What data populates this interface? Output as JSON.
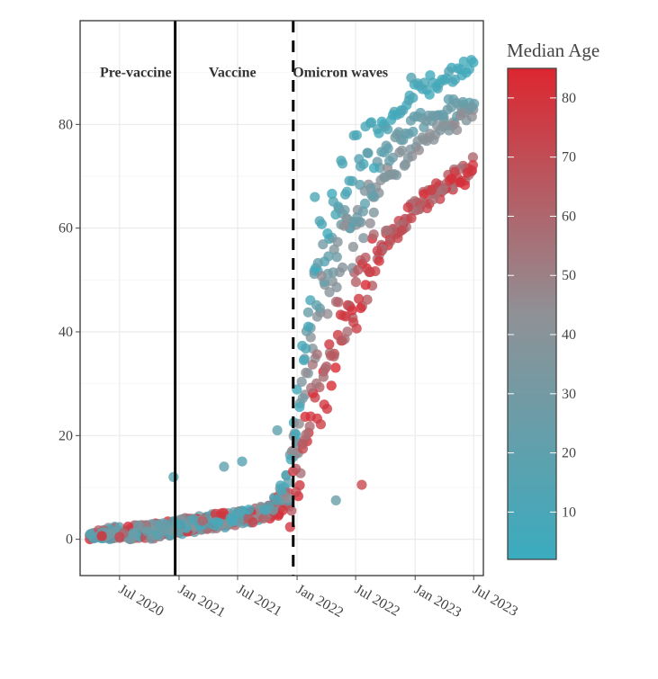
{
  "chart_data": {
    "type": "scatter",
    "title": "",
    "xlabel": "",
    "ylabel": "",
    "x_range": [
      "2020-03-01",
      "2023-07-31"
    ],
    "ylim": [
      -7,
      100
    ],
    "grid": true,
    "x_ticks": [
      {
        "date": "2020-07-01",
        "label": "Jul 2020"
      },
      {
        "date": "2021-01-01",
        "label": "Jan 2021"
      },
      {
        "date": "2021-07-01",
        "label": "Jul 2021"
      },
      {
        "date": "2022-01-01",
        "label": "Jan 2022"
      },
      {
        "date": "2022-07-01",
        "label": "Jul 2022"
      },
      {
        "date": "2023-01-01",
        "label": "Jan 2023"
      },
      {
        "date": "2023-07-01",
        "label": "Jul 2023"
      }
    ],
    "y_ticks": [
      0,
      20,
      40,
      60,
      80
    ],
    "period_lines": [
      {
        "date": "2020-12-20",
        "style": "solid",
        "name": "vaccine-start"
      },
      {
        "date": "2021-12-20",
        "style": "dashed",
        "name": "omicron-start"
      }
    ],
    "period_labels": [
      {
        "text": "Pre-vaccine",
        "date": "2020-08-20",
        "y": 90
      },
      {
        "text": "Vaccine",
        "date": "2021-06-15",
        "y": 90
      },
      {
        "text": "Omicron waves",
        "date": "2022-05-15",
        "y": 90
      }
    ],
    "color_scale": {
      "title": "Median Age",
      "min": 2,
      "max": 85,
      "low_color": "#3aacbf",
      "mid_color": "#8f9196",
      "high_color": "#dd2630",
      "ticks": [
        10,
        20,
        30,
        40,
        50,
        60,
        70,
        80
      ]
    },
    "trend_series": [
      {
        "name": "youngest",
        "age": 10,
        "points": [
          [
            "2020-04-01",
            0.5
          ],
          [
            "2020-10-01",
            1.5
          ],
          [
            "2021-03-01",
            3
          ],
          [
            "2021-07-01",
            4
          ],
          [
            "2021-10-01",
            5
          ],
          [
            "2021-12-01",
            12
          ],
          [
            "2022-01-01",
            25
          ],
          [
            "2022-02-01",
            42
          ],
          [
            "2022-03-01",
            53
          ],
          [
            "2022-04-01",
            60
          ],
          [
            "2022-05-01",
            65
          ],
          [
            "2022-06-01",
            70
          ],
          [
            "2022-08-01",
            75
          ],
          [
            "2022-10-01",
            80
          ],
          [
            "2023-01-01",
            86
          ],
          [
            "2023-04-01",
            89
          ],
          [
            "2023-07-01",
            91
          ]
        ]
      },
      {
        "name": "young-adult",
        "age": 25,
        "points": [
          [
            "2020-04-01",
            0.5
          ],
          [
            "2020-10-01",
            1.5
          ],
          [
            "2021-03-01",
            3
          ],
          [
            "2021-07-01",
            4
          ],
          [
            "2021-10-01",
            5
          ],
          [
            "2021-12-01",
            11
          ],
          [
            "2022-01-01",
            22
          ],
          [
            "2022-02-01",
            38
          ],
          [
            "2022-03-01",
            48
          ],
          [
            "2022-04-01",
            54
          ],
          [
            "2022-05-01",
            58
          ],
          [
            "2022-06-01",
            62
          ],
          [
            "2022-08-01",
            68
          ],
          [
            "2022-10-01",
            74
          ],
          [
            "2023-01-01",
            80
          ],
          [
            "2023-04-01",
            83
          ],
          [
            "2023-07-01",
            84
          ]
        ]
      },
      {
        "name": "middle-age",
        "age": 40,
        "points": [
          [
            "2020-04-01",
            0.5
          ],
          [
            "2020-10-01",
            1.5
          ],
          [
            "2021-03-01",
            3
          ],
          [
            "2021-07-01",
            4
          ],
          [
            "2021-10-01",
            5
          ],
          [
            "2021-12-01",
            10
          ],
          [
            "2022-01-01",
            19
          ],
          [
            "2022-02-01",
            32
          ],
          [
            "2022-03-01",
            42
          ],
          [
            "2022-04-01",
            48
          ],
          [
            "2022-05-01",
            52
          ],
          [
            "2022-06-01",
            56
          ],
          [
            "2022-08-01",
            63
          ],
          [
            "2022-10-01",
            70
          ],
          [
            "2023-01-01",
            76
          ],
          [
            "2023-04-01",
            80
          ],
          [
            "2023-07-01",
            81
          ]
        ]
      },
      {
        "name": "senior",
        "age": 60,
        "points": [
          [
            "2020-04-01",
            0.5
          ],
          [
            "2020-10-01",
            1.5
          ],
          [
            "2021-03-01",
            3
          ],
          [
            "2021-07-01",
            4
          ],
          [
            "2021-10-01",
            5
          ],
          [
            "2021-12-01",
            8
          ],
          [
            "2022-01-01",
            15
          ],
          [
            "2022-02-01",
            24
          ],
          [
            "2022-03-01",
            32
          ],
          [
            "2022-04-01",
            36
          ],
          [
            "2022-05-01",
            40
          ],
          [
            "2022-06-01",
            44
          ],
          [
            "2022-08-01",
            50
          ],
          [
            "2022-10-01",
            58
          ],
          [
            "2023-01-01",
            64
          ],
          [
            "2023-04-01",
            68
          ],
          [
            "2023-07-01",
            72
          ]
        ]
      },
      {
        "name": "oldest",
        "age": 78,
        "points": [
          [
            "2020-04-01",
            0.5
          ],
          [
            "2020-10-01",
            1.5
          ],
          [
            "2021-03-01",
            3
          ],
          [
            "2021-07-01",
            4
          ],
          [
            "2021-10-01",
            5
          ],
          [
            "2021-12-01",
            6
          ],
          [
            "2022-01-01",
            12
          ],
          [
            "2022-02-01",
            19
          ],
          [
            "2022-03-01",
            25
          ],
          [
            "2022-04-01",
            30
          ],
          [
            "2022-05-01",
            36
          ],
          [
            "2022-06-01",
            42
          ],
          [
            "2022-08-01",
            50
          ],
          [
            "2022-10-01",
            57
          ],
          [
            "2023-01-01",
            64
          ],
          [
            "2023-04-01",
            68
          ],
          [
            "2023-07-01",
            71
          ]
        ]
      }
    ],
    "outlier_points": [
      {
        "date": "2020-12-15",
        "value": 12,
        "age": 15
      },
      {
        "date": "2021-05-20",
        "value": 14,
        "age": 20
      },
      {
        "date": "2021-07-15",
        "value": 15,
        "age": 15
      },
      {
        "date": "2021-11-01",
        "value": 21,
        "age": 20
      },
      {
        "date": "2022-05-01",
        "value": 7.5,
        "age": 25
      },
      {
        "date": "2022-07-20",
        "value": 10.5,
        "age": 72
      },
      {
        "date": "2022-02-25",
        "value": 66,
        "age": 12
      },
      {
        "date": "2022-12-20",
        "value": 89,
        "age": 15
      }
    ]
  }
}
